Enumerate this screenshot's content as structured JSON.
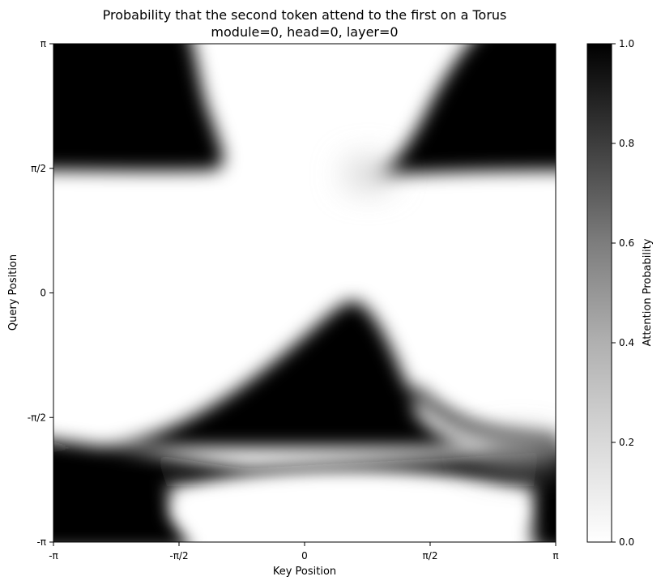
{
  "chart_data": {
    "type": "heatmap",
    "title": "Probability that the second token attend to the first on a Torus",
    "subtitle": "module=0, head=0, layer=0",
    "xlabel": "Key Position",
    "ylabel": "Query Position",
    "xlim": [
      -3.14159,
      3.14159
    ],
    "ylim": [
      -3.14159,
      3.14159
    ],
    "x_ticks": [
      "-π",
      "-π/2",
      "0",
      "π/2",
      "π"
    ],
    "y_ticks": [
      "-π",
      "-π/2",
      "0",
      "π/2",
      "π"
    ],
    "colormap": "Greys",
    "colorbar": {
      "label": "Attention Probability",
      "range": [
        0.0,
        1.0
      ],
      "ticks": [
        "0.0",
        "0.2",
        "0.4",
        "0.6",
        "0.8",
        "1.0"
      ]
    },
    "regions": [
      {
        "description": "top-left dark blob",
        "x_range": [
          -3.14,
          -1.2
        ],
        "y_range": [
          1.5,
          3.14
        ],
        "value": 1.0
      },
      {
        "description": "top-right dark blob",
        "x_range": [
          1.0,
          3.14
        ],
        "y_range": [
          1.5,
          3.14
        ],
        "value": 1.0
      },
      {
        "description": "central dark peak",
        "x_range": [
          -1.5,
          2.2
        ],
        "y_range": [
          -1.9,
          -0.1
        ],
        "value": 1.0
      },
      {
        "description": "bottom-left dark blob",
        "x_range": [
          -3.14,
          -1.6
        ],
        "y_range": [
          -3.14,
          -1.9
        ],
        "value": 1.0
      },
      {
        "description": "bottom-right dark blob",
        "x_range": [
          2.7,
          3.14
        ],
        "y_range": [
          -3.14,
          -1.9
        ],
        "value": 0.9
      },
      {
        "description": "middle white band",
        "x_range": [
          -3.14,
          3.14
        ],
        "y_range": [
          -0.1,
          1.5
        ],
        "value": 0.0
      },
      {
        "description": "bottom white ellipse",
        "x_range": [
          -1.6,
          2.7
        ],
        "y_range": [
          -3.14,
          -2.0
        ],
        "value": 0.0
      }
    ]
  }
}
